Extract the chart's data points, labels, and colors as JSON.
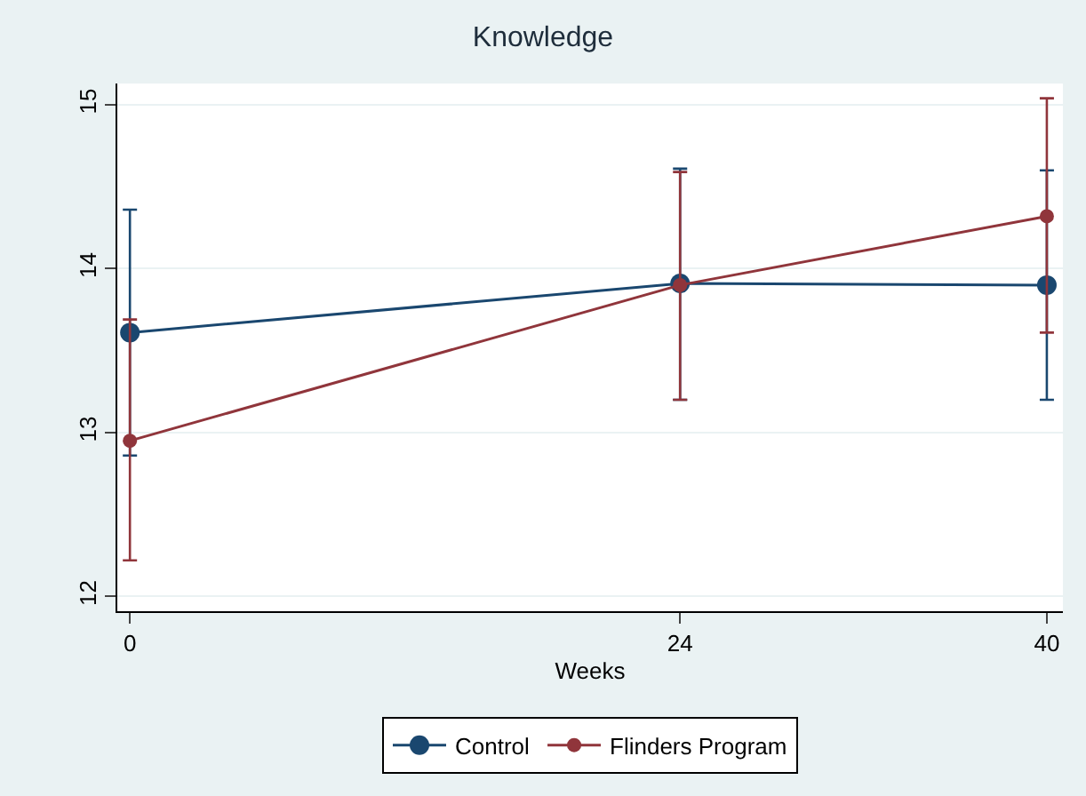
{
  "chart_data": {
    "type": "line",
    "title": "Knowledge",
    "xlabel": "Weeks",
    "x": [
      0,
      24,
      40
    ],
    "series": [
      {
        "name": "Control",
        "color": "#1a476f",
        "values": [
          13.61,
          13.91,
          13.9
        ],
        "errors": [
          [
            12.86,
            14.36
          ],
          [
            13.2,
            14.61
          ],
          [
            13.2,
            14.6
          ]
        ]
      },
      {
        "name": "Flinders Program",
        "color": "#90353b",
        "values": [
          12.95,
          13.9,
          14.32
        ],
        "errors": [
          [
            12.22,
            13.69
          ],
          [
            13.2,
            14.59
          ],
          [
            13.61,
            15.04
          ]
        ]
      }
    ],
    "xlim": [
      -0.55,
      40.7
    ],
    "xticks": [
      0,
      24,
      40
    ],
    "ylim": [
      11.91,
      15.13
    ],
    "yticks": [
      12,
      13,
      14,
      15
    ],
    "grid": "y",
    "legend": "bottom",
    "marker": "circle",
    "line_style": "solid"
  }
}
